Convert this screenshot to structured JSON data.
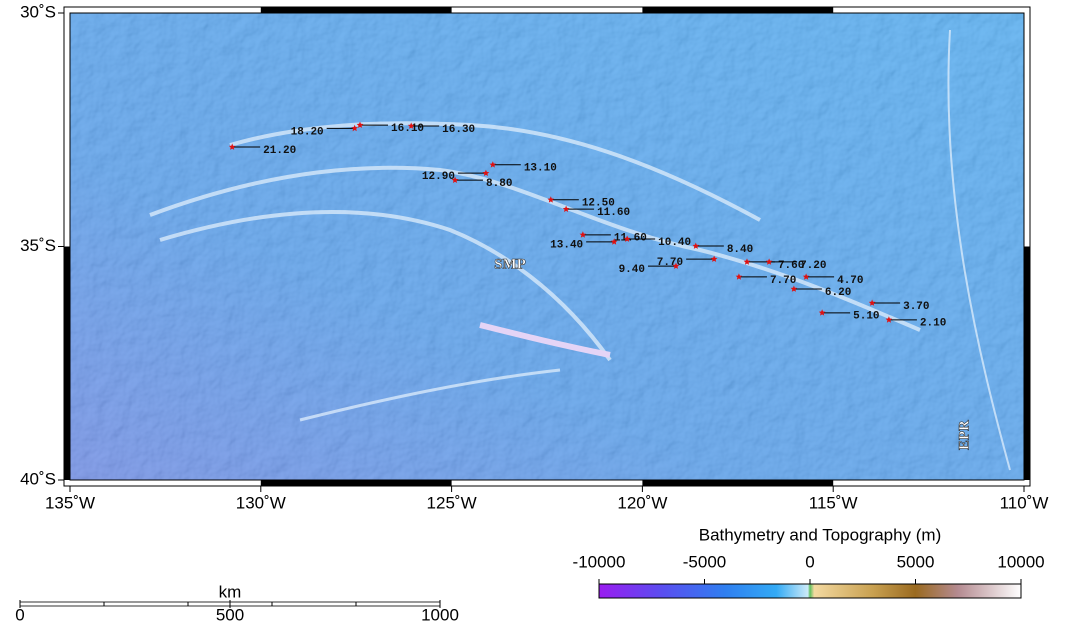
{
  "map": {
    "lon_range": [
      -135,
      -110
    ],
    "lat_range": [
      -40,
      -30
    ],
    "lon_ticks": [
      {
        "value": -135,
        "label": "135˚W"
      },
      {
        "value": -130,
        "label": "130˚W"
      },
      {
        "value": -125,
        "label": "125˚W"
      },
      {
        "value": -120,
        "label": "120˚W"
      },
      {
        "value": -115,
        "label": "115˚W"
      },
      {
        "value": -110,
        "label": "110˚W"
      }
    ],
    "lat_ticks": [
      {
        "value": -30,
        "label": "30˚S"
      },
      {
        "value": -35,
        "label": "35˚S"
      },
      {
        "value": -40,
        "label": "40˚S"
      }
    ],
    "samples": [
      {
        "lon": -130.75,
        "lat": -32.87,
        "label": "21.20"
      },
      {
        "lon": -127.54,
        "lat": -32.47,
        "label": "18.20"
      },
      {
        "lon": -127.4,
        "lat": -32.4,
        "label": "16.10"
      },
      {
        "lon": -126.06,
        "lat": -32.42,
        "label": "16.30"
      },
      {
        "lon": -123.92,
        "lat": -33.25,
        "label": "13.10"
      },
      {
        "lon": -124.1,
        "lat": -33.43,
        "label": "12.90"
      },
      {
        "lon": -124.91,
        "lat": -33.58,
        "label": "8.80"
      },
      {
        "lon": -122.4,
        "lat": -34.0,
        "label": "12.50"
      },
      {
        "lon": -122.0,
        "lat": -34.2,
        "label": "11.60"
      },
      {
        "lon": -121.56,
        "lat": -34.75,
        "label": "11.60"
      },
      {
        "lon": -120.74,
        "lat": -34.9,
        "label": "13.40"
      },
      {
        "lon": -120.4,
        "lat": -34.84,
        "label": "10.40"
      },
      {
        "lon": -118.6,
        "lat": -34.99,
        "label": "8.40"
      },
      {
        "lon": -118.12,
        "lat": -35.27,
        "label": "7.70"
      },
      {
        "lon": -119.12,
        "lat": -35.42,
        "label": "9.40"
      },
      {
        "lon": -117.26,
        "lat": -35.33,
        "label": "7.60"
      },
      {
        "lon": -116.68,
        "lat": -35.33,
        "label": "7.20"
      },
      {
        "lon": -117.47,
        "lat": -35.65,
        "label": "7.70"
      },
      {
        "lon": -115.71,
        "lat": -35.65,
        "label": "4.70"
      },
      {
        "lon": -116.03,
        "lat": -35.91,
        "label": "6.20"
      },
      {
        "lon": -113.98,
        "lat": -36.21,
        "label": "3.70"
      },
      {
        "lon": -115.29,
        "lat": -36.42,
        "label": "5.10"
      },
      {
        "lon": -113.54,
        "lat": -36.57,
        "label": "2.10"
      }
    ],
    "annotations": [
      {
        "text": "SMP",
        "lon": -123.47,
        "lat": -35.4
      },
      {
        "text": "EPR",
        "lon": -111.55,
        "lat": -39.04
      }
    ],
    "colorbar": {
      "title": "Bathymetry and Topography (m)",
      "range": [
        -10000,
        10000
      ],
      "ticks": [
        -10000,
        -5000,
        0,
        5000,
        10000
      ]
    },
    "scale_bar": {
      "unit": "km",
      "range": [
        0,
        1000
      ],
      "ticks": [
        0,
        500,
        1000
      ]
    }
  }
}
